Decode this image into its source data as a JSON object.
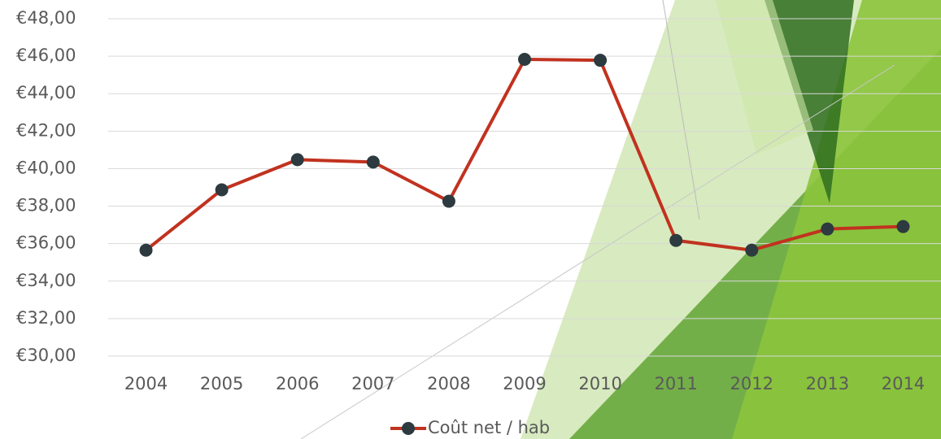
{
  "chart_data": {
    "type": "line",
    "categories": [
      "2004",
      "2005",
      "2006",
      "2007",
      "2008",
      "2009",
      "2010",
      "2011",
      "2012",
      "2013",
      "2014"
    ],
    "series": [
      {
        "name": "Coût net / hab",
        "color": "#c1321f",
        "marker_color": "#2d3a3f",
        "values": [
          35.65,
          38.87,
          40.48,
          40.35,
          38.26,
          45.83,
          45.78,
          36.17,
          35.65,
          36.78,
          36.91
        ]
      }
    ],
    "ylim": [
      30,
      48
    ],
    "yticks": [
      {
        "value": 30,
        "label": "€30,00"
      },
      {
        "value": 32,
        "label": "€32,00"
      },
      {
        "value": 34,
        "label": "€34,00"
      },
      {
        "value": 36,
        "label": "€36,00"
      },
      {
        "value": 38,
        "label": "€38,00"
      },
      {
        "value": 40,
        "label": "€40,00"
      },
      {
        "value": 42,
        "label": "€42,00"
      },
      {
        "value": 44,
        "label": "€44,00"
      },
      {
        "value": 46,
        "label": "€46,00"
      },
      {
        "value": 48,
        "label": "€48,00"
      }
    ],
    "grid": true,
    "legend": "bottom"
  }
}
